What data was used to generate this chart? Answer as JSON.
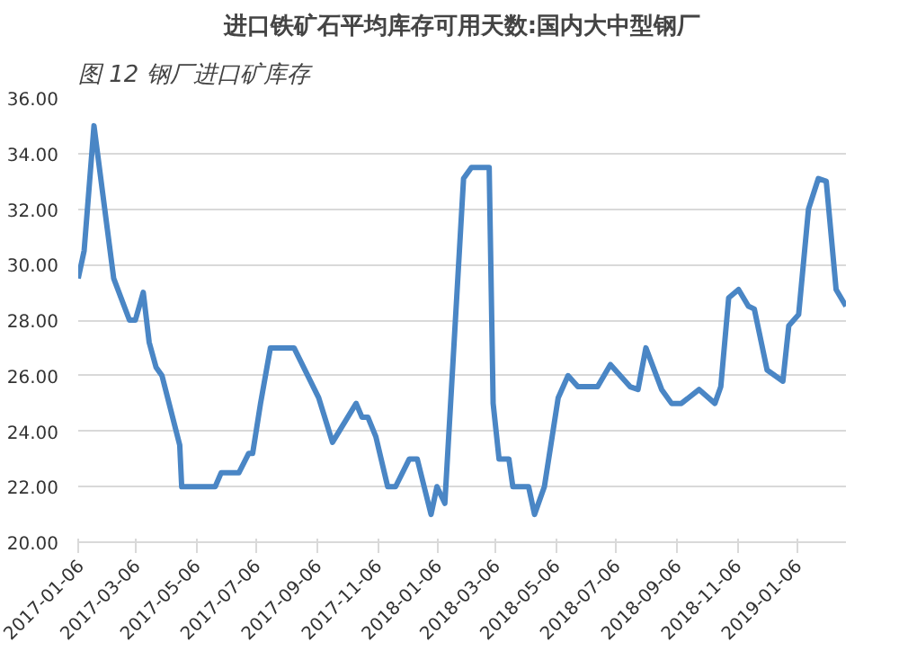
{
  "chart_data": {
    "type": "line",
    "title": "进口铁矿石平均库存可用天数:国内大中型钢厂",
    "subtitle": "图 12  钢厂进口矿库存",
    "x": [
      "2017-01-06",
      "2017-01-12",
      "2017-01-22",
      "2017-02-11",
      "2017-02-27",
      "2017-03-05",
      "2017-03-13",
      "2017-03-19",
      "2017-03-26",
      "2017-04-01",
      "2017-04-19",
      "2017-04-21",
      "2017-05-25",
      "2017-05-31",
      "2017-06-18",
      "2017-06-28",
      "2017-07-02",
      "2017-07-10",
      "2017-07-20",
      "2017-08-13",
      "2017-09-07",
      "2017-09-21",
      "2017-10-15",
      "2017-10-21",
      "2017-10-27",
      "2017-11-04",
      "2017-11-16",
      "2017-11-24",
      "2017-12-08",
      "2017-12-16",
      "2017-12-30",
      "2018-01-05",
      "2018-01-13",
      "2018-02-01",
      "2018-02-09",
      "2018-02-27",
      "2018-03-03",
      "2018-03-09",
      "2018-03-19",
      "2018-03-23",
      "2018-04-08",
      "2018-04-14",
      "2018-04-24",
      "2018-05-08",
      "2018-05-18",
      "2018-05-28",
      "2018-06-17",
      "2018-06-30",
      "2018-07-20",
      "2018-07-28",
      "2018-08-05",
      "2018-08-21",
      "2018-08-31",
      "2018-09-10",
      "2018-09-28",
      "2018-10-14",
      "2018-10-20",
      "2018-10-28",
      "2018-11-07",
      "2018-11-17",
      "2018-11-23",
      "2018-12-06",
      "2018-12-22",
      "2018-12-28",
      "2019-01-07",
      "2019-01-17",
      "2019-01-27",
      "2019-02-04",
      "2019-02-14",
      "2019-02-24"
    ],
    "series": [
      {
        "color": "#4a86c5",
        "values": [
          29.5,
          30.5,
          35.0,
          29.5,
          28.0,
          28.0,
          29.0,
          27.2,
          26.3,
          26.0,
          23.5,
          22.0,
          22.0,
          22.5,
          22.5,
          23.2,
          23.2,
          25.0,
          27.0,
          27.0,
          25.2,
          23.6,
          25.0,
          24.5,
          24.5,
          23.8,
          22.0,
          22.0,
          23.0,
          23.0,
          21.0,
          22.0,
          21.4,
          33.1,
          33.5,
          33.5,
          25.0,
          23.0,
          23.0,
          22.0,
          22.0,
          21.0,
          22.0,
          25.2,
          26.0,
          25.6,
          25.6,
          26.4,
          25.6,
          25.5,
          27.0,
          25.5,
          25.0,
          25.0,
          25.5,
          25.0,
          25.6,
          28.8,
          29.1,
          28.5,
          28.4,
          26.2,
          25.8,
          27.8,
          28.2,
          32.0,
          33.1,
          33.0,
          29.1,
          28.5
        ]
      }
    ],
    "xlim": [
      "2017-01-06",
      "2019-02-24"
    ],
    "xticks": [
      "2017-01-06",
      "2017-03-06",
      "2017-05-06",
      "2017-07-06",
      "2017-09-06",
      "2017-11-06",
      "2018-01-06",
      "2018-03-06",
      "2018-05-06",
      "2018-07-06",
      "2018-09-06",
      "2018-11-06",
      "2019-01-06"
    ],
    "ylim": [
      20,
      36
    ],
    "yticks": [
      {
        "value": 20,
        "label": "20.00"
      },
      {
        "value": 22,
        "label": "22.00"
      },
      {
        "value": 24,
        "label": "24.00"
      },
      {
        "value": 26,
        "label": "26.00"
      },
      {
        "value": 28,
        "label": "28.00"
      },
      {
        "value": 30,
        "label": "30.00"
      },
      {
        "value": 32,
        "label": "32.00"
      },
      {
        "value": 34,
        "label": "34.00"
      },
      {
        "value": 36,
        "label": "36.00"
      }
    ],
    "grid": "y"
  }
}
